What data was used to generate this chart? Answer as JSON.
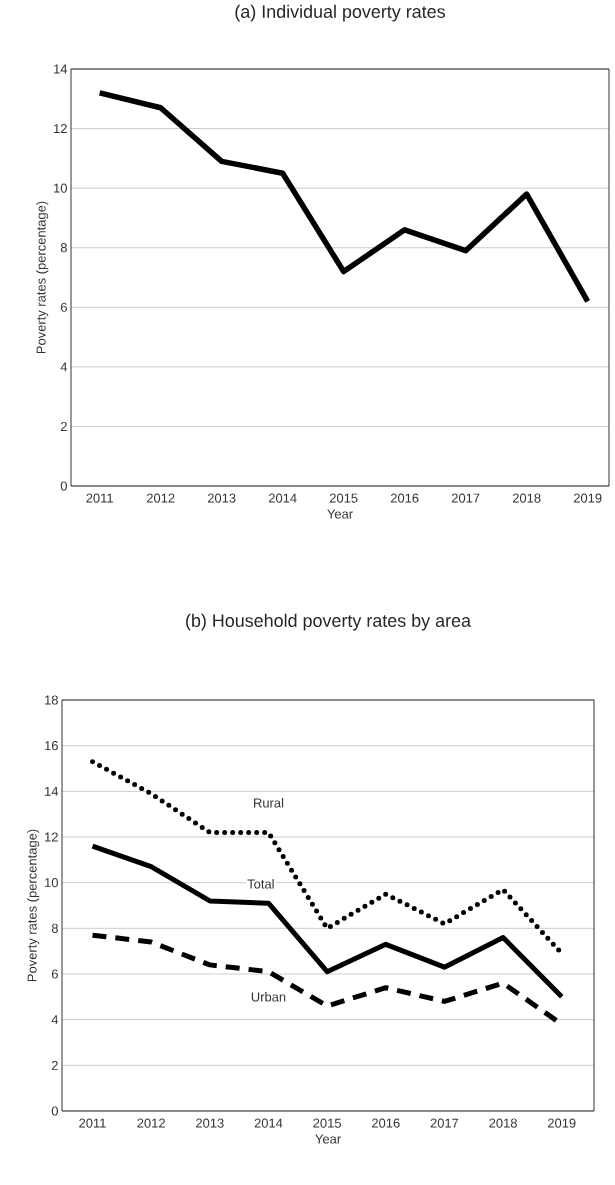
{
  "chart_data": [
    {
      "type": "line",
      "title": "(a) Individual poverty rates",
      "xlabel": "Year",
      "ylabel": "Poverty rates (percentage)",
      "categories": [
        "2011",
        "2012",
        "2013",
        "2014",
        "2015",
        "2016",
        "2017",
        "2018",
        "2019"
      ],
      "series": [
        {
          "color": "#000000",
          "line_style": "solid",
          "values": [
            13.2,
            12.7,
            10.9,
            10.5,
            7.2,
            8.6,
            7.9,
            9.8,
            6.2
          ]
        }
      ],
      "ylim": [
        0,
        14
      ],
      "yticks": [
        0,
        2,
        4,
        6,
        8,
        10,
        12,
        14
      ],
      "grid": "y",
      "marker": "none"
    },
    {
      "type": "line",
      "title": "(b) Household poverty rates by area",
      "xlabel": "Year",
      "ylabel": "Poverty rates (percentage)",
      "categories": [
        "2011",
        "2012",
        "2013",
        "2014",
        "2015",
        "2016",
        "2017",
        "2018",
        "2019"
      ],
      "series": [
        {
          "name": "Rural",
          "color": "#000000",
          "line_style": "dotted",
          "values": [
            15.3,
            13.9,
            12.2,
            12.2,
            8.0,
            9.5,
            8.2,
            9.7,
            6.9
          ]
        },
        {
          "name": "Total",
          "color": "#000000",
          "line_style": "solid",
          "values": [
            11.6,
            10.7,
            9.2,
            9.1,
            6.1,
            7.3,
            6.3,
            7.6,
            5.0
          ]
        },
        {
          "name": "Urban",
          "color": "#000000",
          "line_style": "dashed",
          "values": [
            7.7,
            7.4,
            6.4,
            6.1,
            4.6,
            5.4,
            4.8,
            5.6,
            3.8
          ]
        }
      ],
      "ylim": [
        0,
        18
      ],
      "yticks": [
        0,
        2,
        4,
        6,
        8,
        10,
        12,
        14,
        16,
        18
      ],
      "grid": "y",
      "marker": "none"
    }
  ]
}
